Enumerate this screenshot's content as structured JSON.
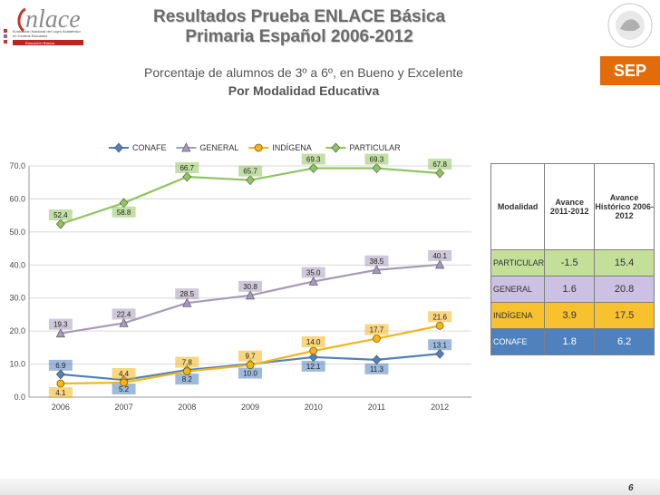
{
  "header": {
    "title_line1": "Resultados Prueba ENLACE Básica",
    "title_line2": "Primaria Español 2006-2012",
    "logo_word": "nlace",
    "logo_sub1": "Evaluación Nacional del Logro Académico",
    "logo_sub2": "en Centros Escolares",
    "logo_sub3": "Educación Básica",
    "sep_label": "SEP"
  },
  "subtitle": {
    "line1": "Porcentaje de alumnos de 3º a 6º, en Bueno y Excelente",
    "line2": "Por Modalidad Educativa"
  },
  "chart_data": {
    "type": "line",
    "x": [
      "2006",
      "2007",
      "2008",
      "2009",
      "2010",
      "2011",
      "2012"
    ],
    "ylim": [
      0,
      70
    ],
    "yticks": [
      "0.0",
      "10.0",
      "20.0",
      "30.0",
      "40.0",
      "50.0",
      "60.0",
      "70.0"
    ],
    "legend_position": "top",
    "grid": true,
    "series": [
      {
        "name": "CONAFE",
        "color": "#4f81bd",
        "marker": "diamond",
        "values": [
          6.9,
          5.2,
          8.2,
          10.0,
          12.1,
          11.3,
          13.1
        ],
        "labels": [
          "6.9",
          "5.2",
          "8.2",
          "10.0",
          "12.1",
          "11.3",
          "13.1"
        ]
      },
      {
        "name": "GENERAL",
        "color": "#a59ab8",
        "marker": "triangle",
        "values": [
          19.3,
          22.4,
          28.5,
          30.8,
          35.0,
          38.5,
          40.1
        ],
        "labels": [
          "19.3",
          "22.4",
          "28.5",
          "30.8",
          "35.0",
          "38.5",
          "40.1"
        ]
      },
      {
        "name": "INDÍGENA",
        "color": "#f4b41a",
        "marker": "circle",
        "values": [
          4.1,
          4.4,
          7.8,
          9.7,
          14.0,
          17.7,
          21.6
        ],
        "labels": [
          "4.1",
          "4.4",
          "7.8",
          "9.7",
          "14.0",
          "17.7",
          "21.6"
        ]
      },
      {
        "name": "PARTICULAR",
        "color": "#8fc45e",
        "marker": "diamond",
        "values": [
          52.4,
          58.8,
          66.7,
          65.7,
          69.3,
          69.3,
          67.8
        ],
        "labels": [
          "52.4",
          "58.8",
          "66.7",
          "65.7",
          "69.3",
          "69.3",
          "67.8"
        ]
      }
    ]
  },
  "table": {
    "headers": [
      "Modalidad",
      "Avance 2011-2012",
      "Avance Histórico 2006-2012"
    ],
    "rows": [
      {
        "modalidad": "PARTICULAR",
        "avance": "-1.5",
        "historico": "15.4",
        "color": "#c3df98"
      },
      {
        "modalidad": "GENERAL",
        "avance": "1.6",
        "historico": "20.8",
        "color": "#ccc0e3"
      },
      {
        "modalidad": "INDÍGENA",
        "avance": "3.9",
        "historico": "17.5",
        "color": "#f8c12e"
      },
      {
        "modalidad": "CONAFE",
        "avance": "1.8",
        "historico": "6.2",
        "color": "#4f81bd"
      }
    ]
  },
  "footer": {
    "page": "6"
  }
}
